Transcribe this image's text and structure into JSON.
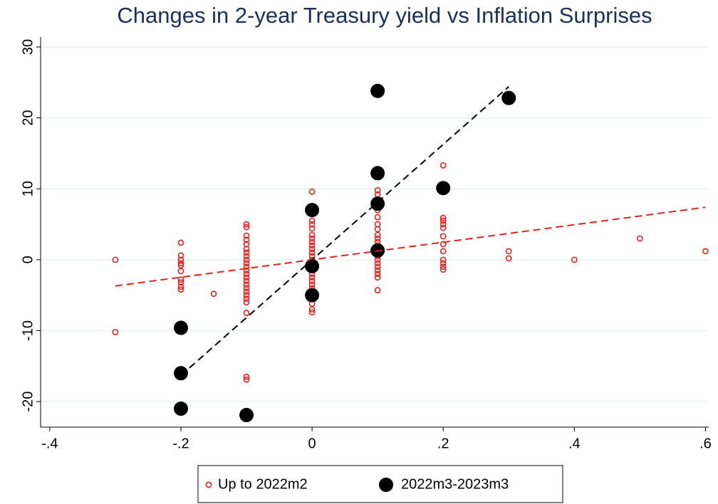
{
  "chart_data": {
    "type": "scatter",
    "title": "Changes in 2-year Treasury yield vs Inflation Surprises",
    "xlim": [
      -0.414,
      0.605
    ],
    "ylim": [
      -23.6,
      31.4
    ],
    "xticks": [
      {
        "value": -0.4,
        "label": "-.4"
      },
      {
        "value": -0.2,
        "label": "-.2"
      },
      0,
      {
        "value": 0.2,
        "label": ".2"
      },
      {
        "value": 0.4,
        "label": ".4"
      },
      {
        "value": 0.6,
        "label": ".6"
      }
    ],
    "yticks": [
      -20,
      -10,
      0,
      10,
      20,
      30
    ],
    "grid": true,
    "legend": "bottom",
    "series": [
      {
        "name": "Up to 2022m2",
        "color": "#e8201c",
        "marker": "hollow",
        "x": [
          -0.3,
          -0.3,
          -0.2,
          -0.2,
          -0.2,
          -0.2,
          -0.2,
          -0.2,
          -0.2,
          -0.2,
          -0.2,
          -0.2,
          -0.15,
          -0.1,
          -0.1,
          -0.1,
          -0.1,
          -0.1,
          -0.1,
          -0.1,
          -0.1,
          -0.1,
          -0.1,
          -0.1,
          -0.1,
          -0.1,
          -0.1,
          -0.1,
          -0.1,
          -0.1,
          -0.1,
          -0.1,
          -0.1,
          -0.1,
          -0.1,
          -0.1,
          -0.1,
          0,
          0,
          0,
          0,
          0,
          0,
          0,
          0,
          0,
          0,
          0,
          0,
          0,
          0,
          0,
          0,
          0,
          0,
          0,
          0,
          0,
          0,
          0,
          0,
          0,
          0,
          0,
          0.1,
          0.1,
          0.1,
          0.1,
          0.1,
          0.1,
          0.1,
          0.1,
          0.1,
          0.1,
          0.1,
          0.1,
          0.1,
          0.1,
          0.1,
          0.1,
          0.1,
          0.1,
          0.1,
          0.1,
          0.1,
          0.2,
          0.2,
          0.2,
          0.2,
          0.2,
          0.2,
          0.2,
          0.2,
          0.2,
          0.2,
          0.2,
          0.2,
          0.3,
          0.3,
          0.4,
          0.5,
          0.6
        ],
        "values": [
          0,
          -10.2,
          2.4,
          0.6,
          0,
          -0.5,
          -0.8,
          -1.6,
          -2.8,
          -3.2,
          -3.8,
          -4.2,
          -4.8,
          5,
          4.6,
          3.4,
          2.8,
          2.2,
          1.5,
          1,
          0.5,
          0,
          -0.5,
          -1,
          -1.5,
          -2,
          -2.5,
          -3,
          -3.5,
          -4,
          -4.5,
          -5,
          -5.5,
          -6,
          -7.5,
          -16.5,
          -16.9,
          9.6,
          6.5,
          5.5,
          5,
          4.4,
          3.5,
          3,
          2.5,
          2,
          1.5,
          1,
          0.5,
          0,
          -0.5,
          -1,
          -1.5,
          -2,
          -2.5,
          -3,
          -3.5,
          -4,
          -4.5,
          -5,
          -5.5,
          -6.2,
          -7,
          -7.4,
          9.8,
          9.2,
          8,
          7,
          6,
          5,
          4.3,
          3.5,
          3,
          2.5,
          2,
          1.5,
          1,
          0.5,
          0,
          -0.5,
          -1,
          -1.5,
          -2,
          -2.5,
          -4.3,
          13.3,
          5.9,
          5.5,
          5,
          4.5,
          3.3,
          2.2,
          1.2,
          0,
          -0.5,
          -1,
          -1.4,
          1.2,
          0.2,
          0,
          3,
          1.2
        ]
      },
      {
        "name": "2022m3-2023m3",
        "color": "#000000",
        "marker": "filled",
        "x": [
          -0.2,
          -0.2,
          -0.2,
          -0.1,
          0,
          0,
          0,
          0.1,
          0.1,
          0.1,
          0.1,
          0.2,
          0.3
        ],
        "values": [
          -9.6,
          -16,
          -21,
          -21.9,
          7,
          -0.9,
          -5,
          23.8,
          12.2,
          7.9,
          1.3,
          10.1,
          22.8
        ]
      }
    ],
    "fit_lines": [
      {
        "color": "#e8201c",
        "x": [
          -0.3,
          0.6
        ],
        "y": [
          -3.7,
          7.4
        ]
      },
      {
        "color": "#000000",
        "x": [
          -0.2,
          0.3
        ],
        "y": [
          -16.3,
          24.4
        ]
      }
    ]
  }
}
